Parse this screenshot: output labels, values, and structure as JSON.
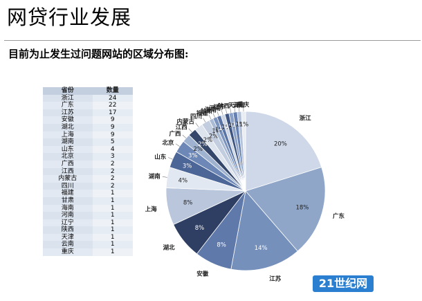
{
  "page": {
    "title": "网贷行业发展",
    "subtitle": "目前为止发生过问题网站的区域分布图:"
  },
  "table": {
    "headers": [
      "省份",
      "数量"
    ],
    "rows": [
      [
        "浙江",
        24
      ],
      [
        "广东",
        22
      ],
      [
        "江苏",
        17
      ],
      [
        "安徽",
        9
      ],
      [
        "湖北",
        9
      ],
      [
        "上海",
        9
      ],
      [
        "湖南",
        5
      ],
      [
        "山东",
        4
      ],
      [
        "北京",
        3
      ],
      [
        "广西",
        2
      ],
      [
        "江西",
        2
      ],
      [
        "内蒙古",
        2
      ],
      [
        "四川",
        2
      ],
      [
        "福建",
        1
      ],
      [
        "甘肃",
        1
      ],
      [
        "海南",
        1
      ],
      [
        "河南",
        1
      ],
      [
        "辽宁",
        1
      ],
      [
        "陕西",
        1
      ],
      [
        "天津",
        1
      ],
      [
        "云南",
        1
      ],
      [
        "重庆",
        1
      ]
    ]
  },
  "chart_data": {
    "type": "pie",
    "categories": [
      "浙江",
      "广东",
      "江苏",
      "安徽",
      "湖北",
      "上海",
      "湖南",
      "山东",
      "北京",
      "广西",
      "江西",
      "内蒙古",
      "四川",
      "福建",
      "甘肃",
      "海南",
      "河南",
      "辽宁",
      "陕西",
      "天津",
      "云南",
      "重庆"
    ],
    "values": [
      24,
      22,
      17,
      9,
      9,
      9,
      5,
      4,
      3,
      2,
      2,
      2,
      2,
      1,
      1,
      1,
      1,
      1,
      1,
      1,
      1,
      1
    ],
    "percent_labels": [
      "20%",
      "18%",
      "14%",
      "8%",
      "8%",
      "8%",
      "4%",
      "3%",
      "3%",
      "2%",
      "2%",
      "2%",
      "2%",
      "1%",
      "1%",
      "1%",
      "1%",
      "1%",
      "1%",
      "1%",
      "1%",
      "1%"
    ],
    "colors": [
      "#ced8e8",
      "#8fa6c8",
      "#7690bc",
      "#5f79aa",
      "#2e3f63",
      "#b9c6dc",
      "#e2e8f1",
      "#4c6698",
      "#6d88b6",
      "#9fb2d0",
      "#34466a",
      "#dde4ee",
      "#c2cde0",
      "#a9bad5",
      "#7b93bf",
      "#5a74a5",
      "#cdd6e6",
      "#3f5582",
      "#8aa0c6",
      "#6681b1",
      "#b3c2da",
      "#e8edf4"
    ],
    "title": "",
    "legend": "none"
  },
  "watermark": {
    "text": "21世纪网"
  }
}
